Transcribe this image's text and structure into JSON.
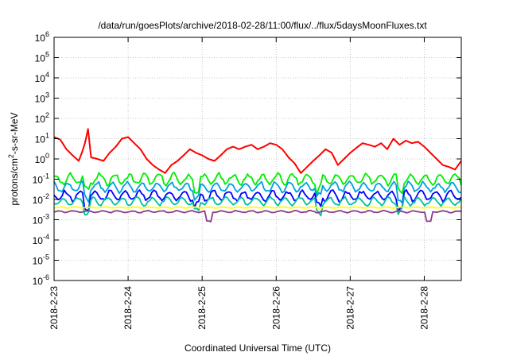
{
  "chart_data": {
    "type": "line",
    "title": "/data/run/goesPlots/archive/2018-02-28/11:00/flux/../flux/5daysMoonFluxes.txt",
    "xlabel": "Coordinated Universal Time (UTC)",
    "ylabel": "protons/cm2-s-sr-MeV",
    "ylabel_parts": {
      "pre": "protons/cm",
      "sup": "2",
      "post": "-s-sr-MeV"
    },
    "y_scale": "log",
    "ylim": [
      1e-06,
      1000000.0
    ],
    "xlim": [
      "2018-02-23 00:00",
      "2018-02-28 12:00"
    ],
    "grid": true,
    "legend": "none",
    "y_ticks": [
      {
        "value": 1e-06,
        "base": "10",
        "exp": "-6"
      },
      {
        "value": 1e-05,
        "base": "10",
        "exp": "-5"
      },
      {
        "value": 0.0001,
        "base": "10",
        "exp": "-4"
      },
      {
        "value": 0.001,
        "base": "10",
        "exp": "-3"
      },
      {
        "value": 0.01,
        "base": "10",
        "exp": "-2"
      },
      {
        "value": 0.1,
        "base": "10",
        "exp": "-1"
      },
      {
        "value": 1,
        "base": "10",
        "exp": "0"
      },
      {
        "value": 10,
        "base": "10",
        "exp": "1"
      },
      {
        "value": 100,
        "base": "10",
        "exp": "2"
      },
      {
        "value": 1000,
        "base": "10",
        "exp": "3"
      },
      {
        "value": 10000,
        "base": "10",
        "exp": "4"
      },
      {
        "value": 100000,
        "base": "10",
        "exp": "5"
      },
      {
        "value": 1000000,
        "base": "10",
        "exp": "6"
      }
    ],
    "x_ticks": [
      "2018-2-23",
      "2018-2-24",
      "2018-2-25",
      "2018-2-26",
      "2018-2-27",
      "2018-2-28"
    ],
    "series": [
      {
        "color": "#ff0000",
        "x": [
          "2018-02-23 00:00",
          "2018-02-23 02:00",
          "2018-02-23 04:00",
          "2018-02-23 06:00",
          "2018-02-23 08:00",
          "2018-02-23 09:00",
          "2018-02-23 10:00",
          "2018-02-23 11:00",
          "2018-02-23 12:00",
          "2018-02-23 14:00",
          "2018-02-23 16:00",
          "2018-02-23 18:00",
          "2018-02-23 20:00",
          "2018-02-23 22:00",
          "2018-02-24 00:00",
          "2018-02-24 02:00",
          "2018-02-24 04:00",
          "2018-02-24 06:00",
          "2018-02-24 08:00",
          "2018-02-24 10:00",
          "2018-02-24 12:00",
          "2018-02-24 14:00",
          "2018-02-24 16:00",
          "2018-02-24 18:00",
          "2018-02-24 20:00",
          "2018-02-24 22:00",
          "2018-02-25 00:00",
          "2018-02-25 02:00",
          "2018-02-25 04:00",
          "2018-02-25 06:00",
          "2018-02-25 08:00",
          "2018-02-25 10:00",
          "2018-02-25 12:00",
          "2018-02-25 14:00",
          "2018-02-25 16:00",
          "2018-02-25 18:00",
          "2018-02-25 20:00",
          "2018-02-25 22:00",
          "2018-02-26 00:00",
          "2018-02-26 02:00",
          "2018-02-26 04:00",
          "2018-02-26 06:00",
          "2018-02-26 08:00",
          "2018-02-26 10:00",
          "2018-02-26 12:00",
          "2018-02-26 14:00",
          "2018-02-26 16:00",
          "2018-02-26 18:00",
          "2018-02-26 20:00",
          "2018-02-26 22:00",
          "2018-02-27 00:00",
          "2018-02-27 02:00",
          "2018-02-27 04:00",
          "2018-02-27 06:00",
          "2018-02-27 08:00",
          "2018-02-27 10:00",
          "2018-02-27 12:00",
          "2018-02-27 14:00",
          "2018-02-27 16:00",
          "2018-02-27 18:00",
          "2018-02-27 20:00",
          "2018-02-27 22:00",
          "2018-02-28 00:00",
          "2018-02-28 02:00",
          "2018-02-28 04:00",
          "2018-02-28 06:00",
          "2018-02-28 08:00",
          "2018-02-28 10:00",
          "2018-02-28 12:00"
        ],
        "values": [
          12,
          9,
          3,
          1.5,
          0.8,
          2,
          6,
          30,
          1.2,
          1.0,
          0.8,
          2.0,
          4,
          10,
          12,
          6,
          3,
          1,
          0.5,
          0.3,
          0.2,
          0.5,
          0.8,
          1.5,
          3,
          2,
          1.5,
          1.0,
          0.8,
          1.5,
          3.0,
          4.0,
          3.0,
          4.0,
          5.0,
          3.0,
          4.0,
          6.0,
          5,
          3,
          1.2,
          0.6,
          0.2,
          0.4,
          0.8,
          1.5,
          3.0,
          2.0,
          0.5,
          1.0,
          2.0,
          3.5,
          6.0,
          5.0,
          4.0,
          6.0,
          3.0,
          10.0,
          5.0,
          8.0,
          6.0,
          7.0,
          4.0,
          2.0,
          1.0,
          0.5,
          0.4,
          0.3,
          0.8
        ]
      },
      {
        "color": "#00ee00",
        "base": 0.1,
        "noise": 0.55,
        "period": 0.2,
        "dips": [
          0.08,
          0.35,
          0.65,
          0.85
        ]
      },
      {
        "color": "#00a0e0",
        "base": 0.04,
        "noise": 0.5,
        "period": 0.2,
        "dips": [
          0.08,
          0.35,
          0.65,
          0.85
        ]
      },
      {
        "color": "#0000ff",
        "base": 0.015,
        "noise": 0.5,
        "period": 0.2,
        "dips": [
          0.08,
          0.35,
          0.65,
          0.85
        ]
      },
      {
        "color": "#00c0a0",
        "base": 0.008,
        "noise": 0.4,
        "period": 0.2,
        "dips": [
          0.08,
          0.35,
          0.65,
          0.85
        ]
      },
      {
        "color": "#ffff00",
        "base": 0.004,
        "noise": 0.05,
        "period": 0.2,
        "dips": []
      },
      {
        "color": "#8b3a8b",
        "base": 0.0025,
        "noise": 0.1,
        "period": 0.2,
        "dips": [
          0.38,
          0.92
        ]
      }
    ]
  }
}
